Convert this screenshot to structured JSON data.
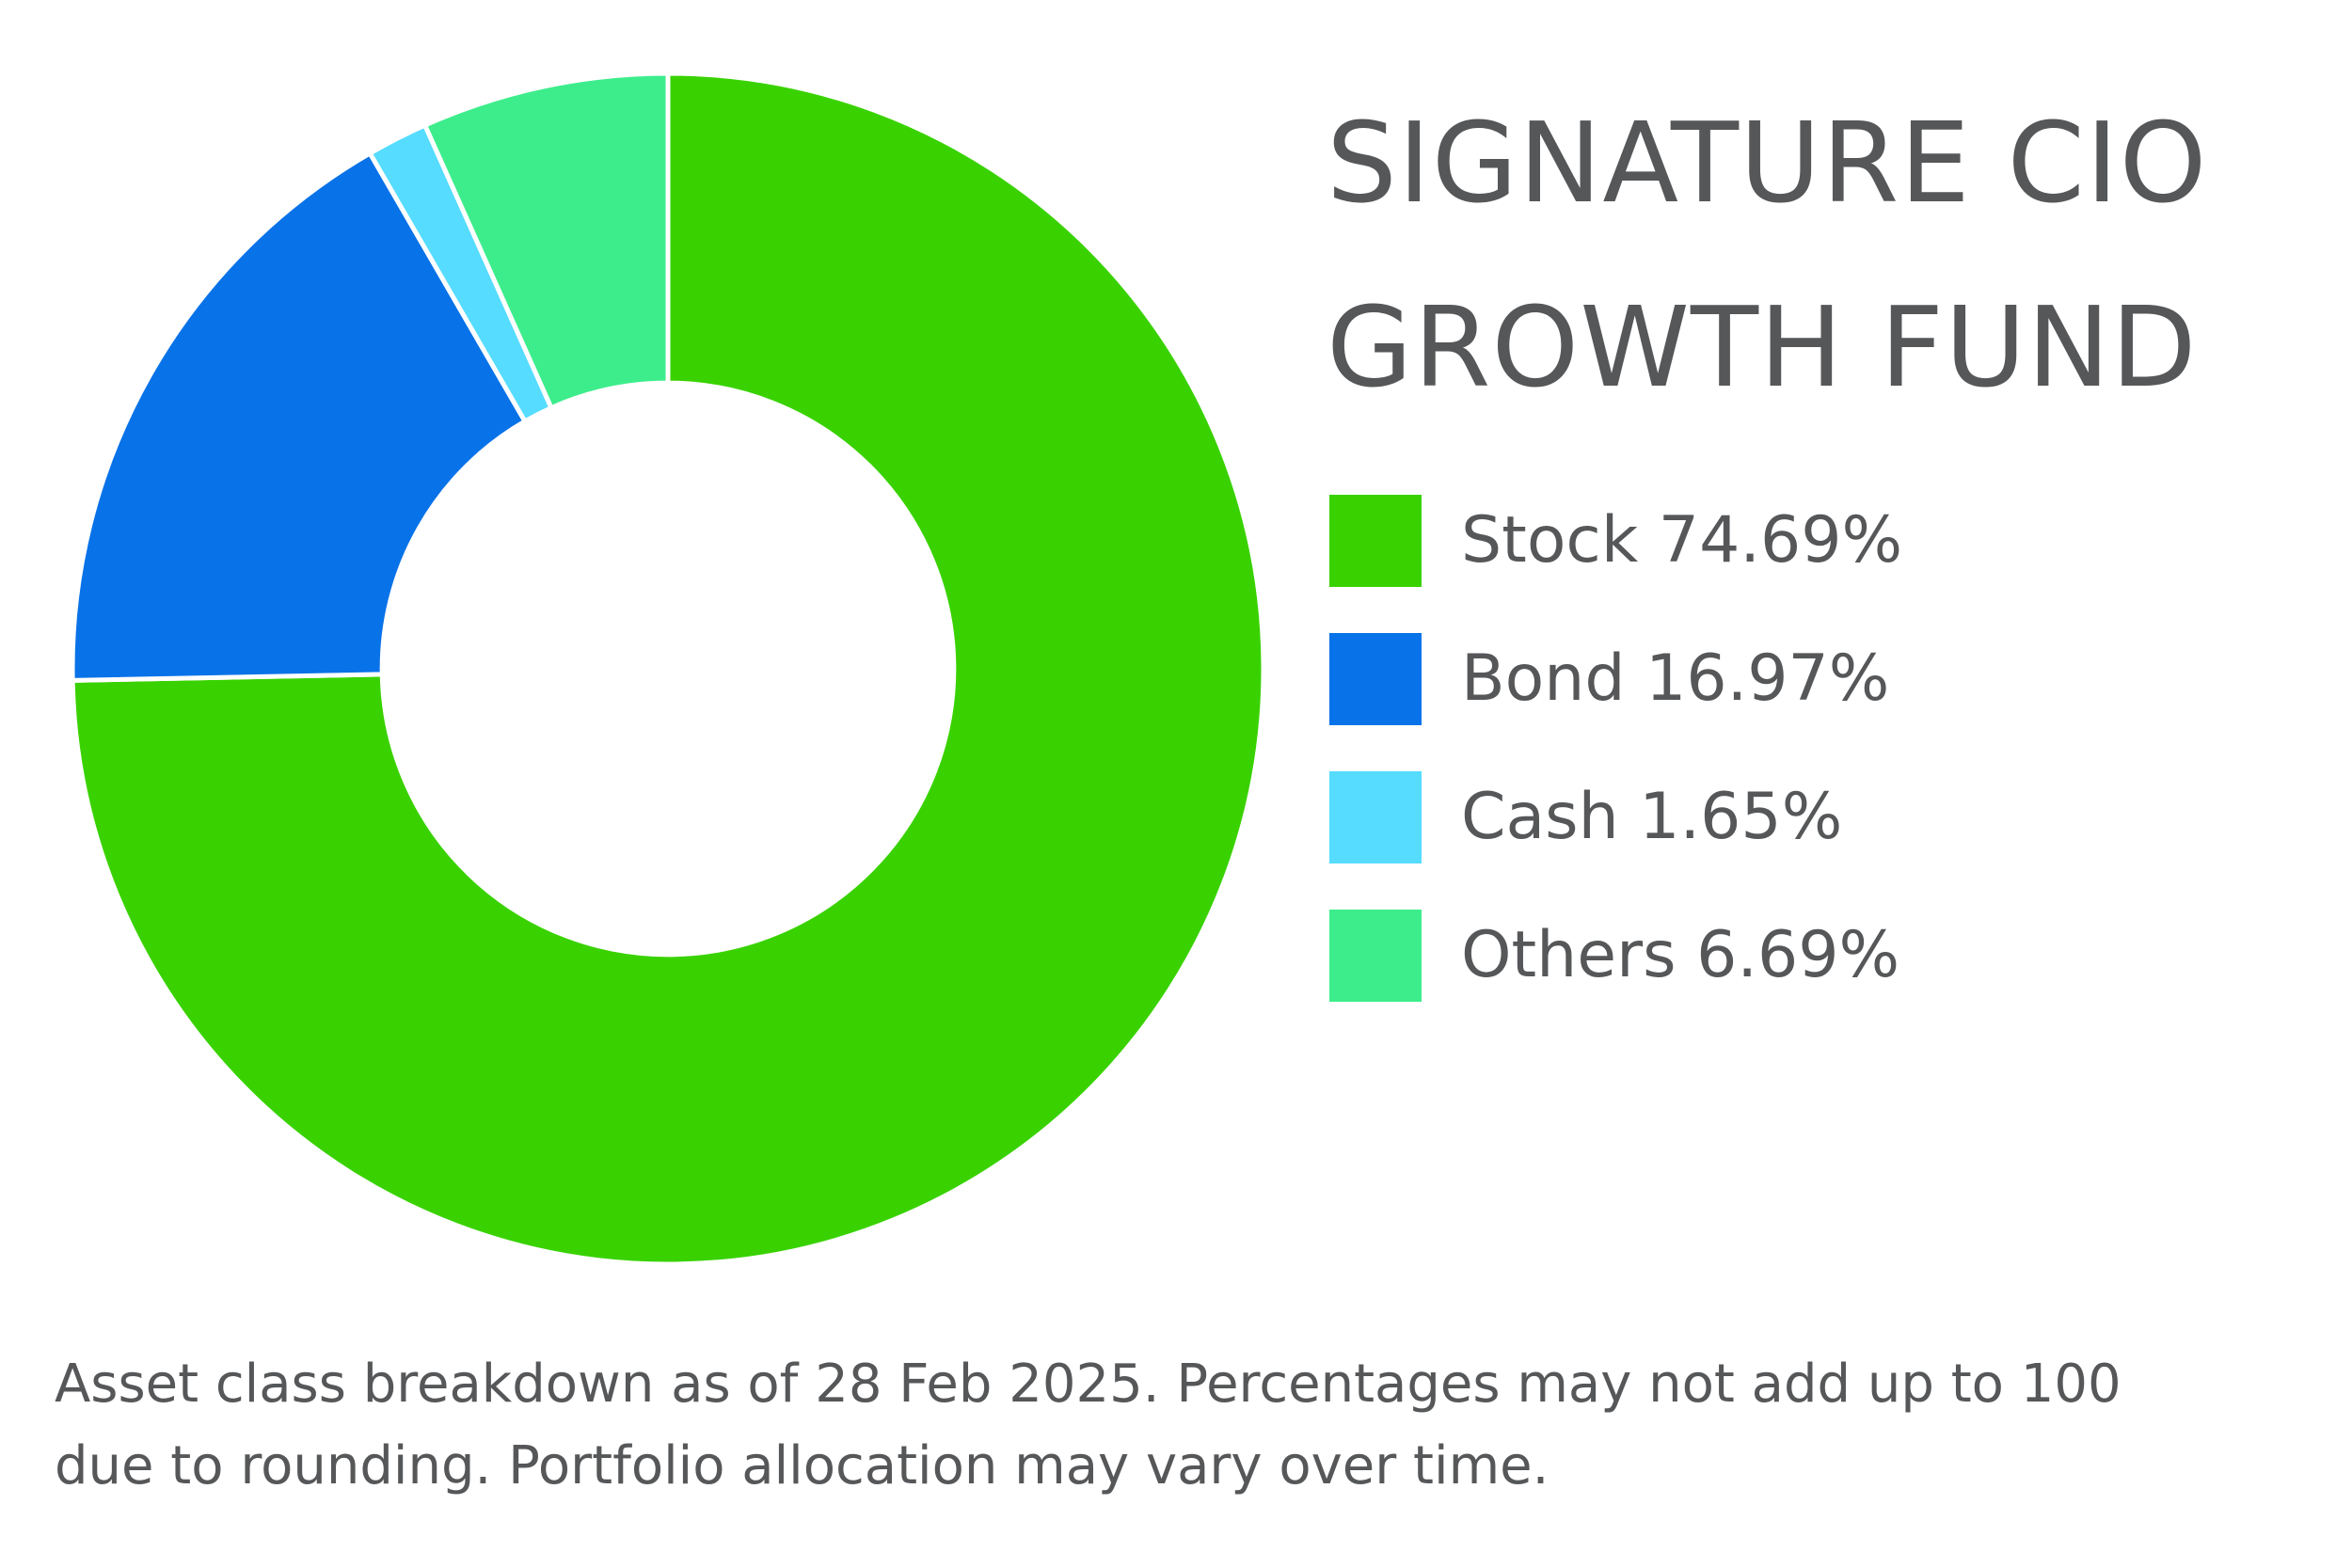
{
  "chart_data": {
    "type": "pie",
    "title": "SIGNATURE CIO GROWTH FUND",
    "categories": [
      "Stock",
      "Bond",
      "Cash",
      "Others"
    ],
    "values": [
      74.69,
      16.97,
      1.65,
      6.69
    ],
    "colors": [
      "#39d200",
      "#0872e8",
      "#55dcff",
      "#3ded8c"
    ],
    "legend_labels": [
      "Stock 74.69%",
      "Bond 16.97%",
      "Cash 1.65%",
      "Others 6.69%"
    ],
    "legend_position": "right",
    "inner_radius_ratio": 0.48
  },
  "title_lines": [
    "SIGNATURE CIO",
    "GROWTH FUND"
  ],
  "footnote_lines": [
    "Asset class breakdown as of 28 Feb 2025. Percentages may not add up to 100",
    "due to rounding. Portfolio allocation may vary over time."
  ]
}
